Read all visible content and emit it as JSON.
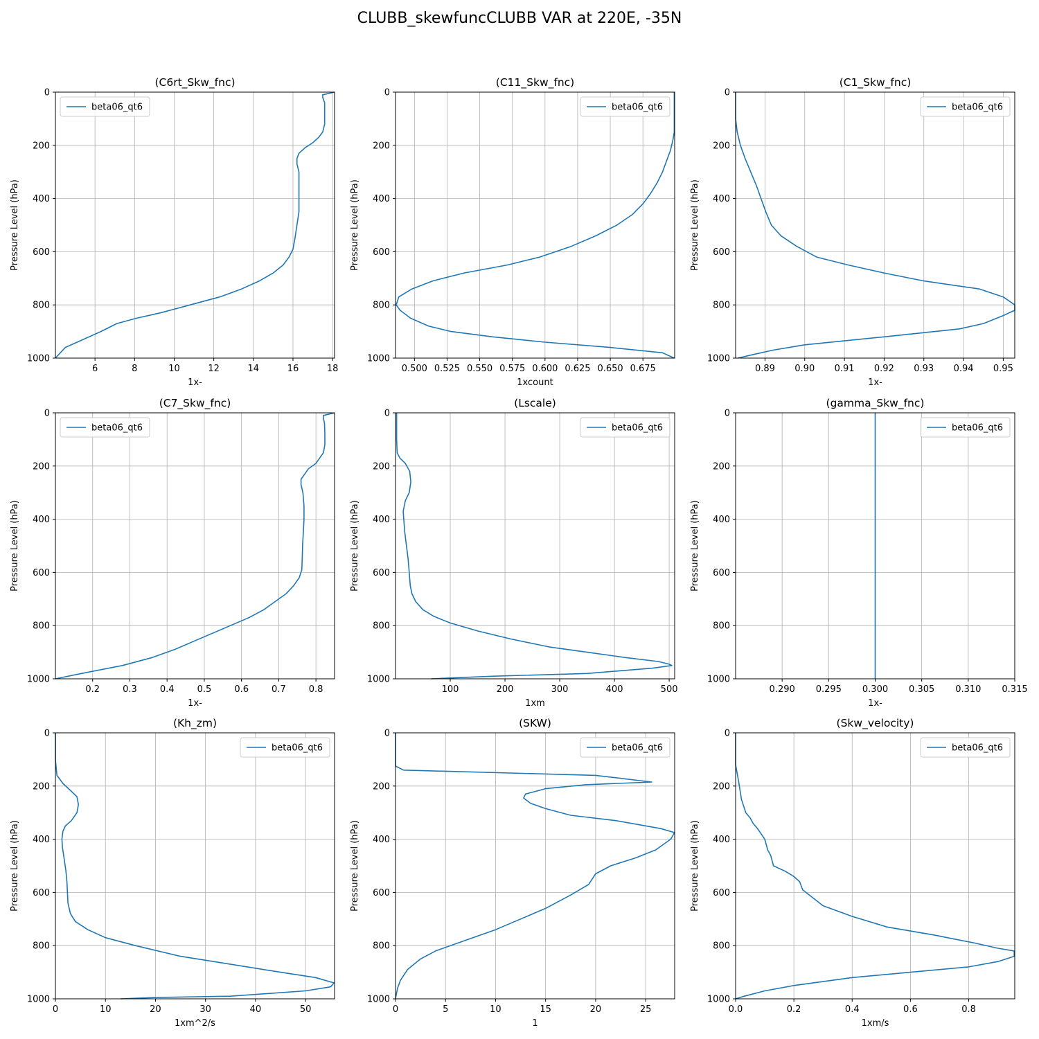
{
  "figure": {
    "title": "CLUBB_skewfuncCLUBB VAR at 220E, -35N"
  },
  "colors": {
    "line": "#1f77b4",
    "grid": "#b0b0b0",
    "axis": "#000000"
  },
  "chart_data": [
    {
      "type": "line",
      "title": "(C6rt_Skw_fnc)",
      "xlabel": "1x-",
      "ylabel": "Pressure Level (hPa)",
      "legend": "top-left",
      "series_name": "beta06_qt6",
      "xlim": [
        4.0,
        18.1
      ],
      "xticks": [
        6,
        8,
        10,
        12,
        14,
        16,
        18
      ],
      "xtick_labels": [
        "6",
        "8",
        "10",
        "12",
        "14",
        "16",
        "18"
      ],
      "ylim": [
        0,
        1000
      ],
      "yticks": [
        0,
        200,
        400,
        600,
        800,
        1000
      ],
      "ytick_labels": [
        "0",
        "200",
        "400",
        "600",
        "800",
        "1000"
      ],
      "x": [
        18.1,
        17.5,
        17.5,
        17.6,
        17.6,
        17.6,
        17.5,
        17.3,
        17.0,
        16.6,
        16.3,
        16.2,
        16.2,
        16.3,
        16.3,
        16.3,
        16.3,
        16.2,
        16.1,
        16.0,
        15.8,
        15.5,
        15.0,
        14.3,
        13.4,
        12.3,
        10.8,
        9.3,
        8.1,
        7.1,
        6.3,
        5.4,
        4.5,
        4.0
      ],
      "y": [
        0,
        10,
        20,
        40,
        80,
        120,
        150,
        170,
        190,
        210,
        230,
        250,
        270,
        300,
        350,
        400,
        450,
        500,
        550,
        590,
        620,
        650,
        680,
        710,
        740,
        770,
        800,
        830,
        850,
        870,
        900,
        930,
        960,
        1000
      ]
    },
    {
      "type": "line",
      "title": "(C11_Skw_fnc)",
      "xlabel": "1xcount",
      "ylabel": "Pressure Level (hPa)",
      "legend": "top-right",
      "series_name": "beta06_qt6",
      "xlim": [
        0.4855,
        0.6993
      ],
      "xticks": [
        0.5,
        0.525,
        0.55,
        0.575,
        0.6,
        0.625,
        0.65,
        0.675
      ],
      "xtick_labels": [
        "0.500",
        "0.525",
        "0.550",
        "0.575",
        "0.600",
        "0.625",
        "0.650",
        "0.675"
      ],
      "ylim": [
        0,
        1000
      ],
      "yticks": [
        0,
        200,
        400,
        600,
        800,
        1000
      ],
      "ytick_labels": [
        "0",
        "200",
        "400",
        "600",
        "800",
        "1000"
      ],
      "x": [
        0.699,
        0.699,
        0.699,
        0.699,
        0.698,
        0.696,
        0.693,
        0.69,
        0.686,
        0.681,
        0.675,
        0.667,
        0.655,
        0.639,
        0.62,
        0.596,
        0.571,
        0.538,
        0.514,
        0.498,
        0.488,
        0.486,
        0.489,
        0.497,
        0.511,
        0.528,
        0.56,
        0.6,
        0.65,
        0.69,
        0.699
      ],
      "y": [
        0,
        50,
        100,
        150,
        180,
        220,
        260,
        300,
        340,
        380,
        420,
        460,
        500,
        540,
        580,
        620,
        650,
        680,
        710,
        740,
        770,
        800,
        820,
        850,
        880,
        900,
        920,
        940,
        960,
        980,
        1000
      ]
    },
    {
      "type": "line",
      "title": "(C1_Skw_fnc)",
      "xlabel": "1x-",
      "ylabel": "Pressure Level (hPa)",
      "legend": "top-right",
      "series_name": "beta06_qt6",
      "xlim": [
        0.8826,
        0.9529
      ],
      "xticks": [
        0.89,
        0.9,
        0.91,
        0.92,
        0.93,
        0.94,
        0.95
      ],
      "xtick_labels": [
        "0.89",
        "0.90",
        "0.91",
        "0.92",
        "0.93",
        "0.94",
        "0.95"
      ],
      "ylim": [
        0,
        1000
      ],
      "yticks": [
        0,
        200,
        400,
        600,
        800,
        1000
      ],
      "ytick_labels": [
        "0",
        "200",
        "400",
        "600",
        "800",
        "1000"
      ],
      "x": [
        0.8826,
        0.8826,
        0.883,
        0.8838,
        0.885,
        0.8864,
        0.8878,
        0.889,
        0.8902,
        0.8916,
        0.894,
        0.898,
        0.903,
        0.911,
        0.92,
        0.93,
        0.944,
        0.95,
        0.9529,
        0.9529,
        0.95,
        0.945,
        0.939,
        0.92,
        0.9,
        0.892,
        0.886,
        0.8832
      ],
      "y": [
        0,
        100,
        150,
        200,
        250,
        300,
        350,
        400,
        450,
        500,
        540,
        580,
        620,
        650,
        680,
        710,
        740,
        770,
        800,
        820,
        840,
        870,
        890,
        920,
        950,
        970,
        990,
        1000
      ]
    },
    {
      "type": "line",
      "title": "(C7_Skw_fnc)",
      "xlabel": "1x-",
      "ylabel": "Pressure Level (hPa)",
      "legend": "top-left",
      "series_name": "beta06_qt6",
      "xlim": [
        0.1,
        0.85
      ],
      "xticks": [
        0.2,
        0.3,
        0.4,
        0.5,
        0.6,
        0.7,
        0.8
      ],
      "xtick_labels": [
        "0.2",
        "0.3",
        "0.4",
        "0.5",
        "0.6",
        "0.7",
        "0.8"
      ],
      "ylim": [
        0,
        1000
      ],
      "yticks": [
        0,
        200,
        400,
        600,
        800,
        1000
      ],
      "ytick_labels": [
        "0",
        "200",
        "400",
        "600",
        "800",
        "1000"
      ],
      "x": [
        0.85,
        0.82,
        0.82,
        0.823,
        0.824,
        0.824,
        0.82,
        0.81,
        0.8,
        0.78,
        0.77,
        0.76,
        0.76,
        0.765,
        0.768,
        0.768,
        0.766,
        0.764,
        0.763,
        0.762,
        0.755,
        0.74,
        0.72,
        0.69,
        0.66,
        0.62,
        0.57,
        0.52,
        0.47,
        0.42,
        0.36,
        0.28,
        0.17,
        0.1
      ],
      "y": [
        0,
        10,
        20,
        40,
        80,
        120,
        150,
        170,
        190,
        210,
        230,
        250,
        270,
        300,
        350,
        400,
        450,
        500,
        550,
        590,
        620,
        650,
        680,
        710,
        740,
        770,
        800,
        830,
        860,
        890,
        920,
        950,
        980,
        1000
      ]
    },
    {
      "type": "line",
      "title": "(Lscale)",
      "xlabel": "1xm",
      "ylabel": "Pressure Level (hPa)",
      "legend": "top-right",
      "series_name": "beta06_qt6",
      "xlim": [
        0,
        510
      ],
      "xticks": [
        100,
        200,
        300,
        400,
        500
      ],
      "xtick_labels": [
        "100",
        "200",
        "300",
        "400",
        "500"
      ],
      "ylim": [
        0,
        1000
      ],
      "yticks": [
        0,
        200,
        400,
        600,
        800,
        1000
      ],
      "ytick_labels": [
        "0",
        "200",
        "400",
        "600",
        "800",
        "1000"
      ],
      "x": [
        2,
        2,
        2,
        3,
        8,
        18,
        26,
        28,
        25,
        18,
        14,
        15,
        17,
        20,
        23,
        25,
        27,
        30,
        37,
        50,
        70,
        100,
        150,
        210,
        280,
        350,
        420,
        480,
        500,
        505,
        470,
        350,
        180,
        65
      ],
      "y": [
        0,
        50,
        100,
        150,
        170,
        190,
        220,
        260,
        300,
        330,
        370,
        400,
        450,
        500,
        550,
        600,
        650,
        680,
        710,
        740,
        765,
        790,
        820,
        850,
        880,
        900,
        920,
        935,
        945,
        950,
        960,
        980,
        990,
        1000
      ]
    },
    {
      "type": "line",
      "title": "(gamma_Skw_fnc)",
      "xlabel": "1x-",
      "ylabel": "Pressure Level (hPa)",
      "legend": "top-right",
      "series_name": "beta06_qt6",
      "xlim": [
        0.285,
        0.315
      ],
      "xticks": [
        0.29,
        0.295,
        0.3,
        0.305,
        0.31,
        0.315
      ],
      "xtick_labels": [
        "0.290",
        "0.295",
        "0.300",
        "0.305",
        "0.310",
        "0.315"
      ],
      "ylim": [
        0,
        1000
      ],
      "yticks": [
        0,
        200,
        400,
        600,
        800,
        1000
      ],
      "ytick_labels": [
        "0",
        "200",
        "400",
        "600",
        "800",
        "1000"
      ],
      "x": [
        0.3,
        0.3
      ],
      "y": [
        0,
        1000
      ]
    },
    {
      "type": "line",
      "title": "(Kh_zm)",
      "xlabel": "1xm^2/s",
      "ylabel": "Pressure Level (hPa)",
      "legend": "top-right",
      "series_name": "beta06_qt6",
      "xlim": [
        0,
        55.8
      ],
      "xticks": [
        0,
        10,
        20,
        30,
        40,
        50
      ],
      "xtick_labels": [
        "0",
        "10",
        "20",
        "30",
        "40",
        "50"
      ],
      "ylim": [
        0,
        1000
      ],
      "yticks": [
        0,
        200,
        400,
        600,
        800,
        1000
      ],
      "ytick_labels": [
        "0",
        "200",
        "400",
        "600",
        "800",
        "1000"
      ],
      "x": [
        0,
        0,
        0.3,
        1.5,
        3.2,
        4.3,
        4.6,
        4.3,
        3.2,
        2.0,
        1.5,
        1.3,
        1.4,
        1.8,
        2.1,
        2.3,
        2.5,
        3.0,
        4.0,
        6.5,
        10,
        16,
        25,
        35,
        45,
        52,
        55.7,
        55,
        50,
        35,
        20,
        13
      ],
      "y": [
        0,
        100,
        160,
        190,
        220,
        240,
        270,
        300,
        330,
        350,
        370,
        400,
        430,
        480,
        520,
        560,
        640,
        680,
        710,
        740,
        770,
        800,
        840,
        870,
        900,
        920,
        940,
        955,
        970,
        990,
        995,
        1000
      ]
    },
    {
      "type": "line",
      "title": "(SKW)",
      "xlabel": "1",
      "ylabel": "Pressure Level (hPa)",
      "legend": "top-right",
      "series_name": "beta06_qt6",
      "xlim": [
        0,
        27.9
      ],
      "xticks": [
        0,
        5,
        10,
        15,
        20,
        25
      ],
      "xtick_labels": [
        "0",
        "5",
        "10",
        "15",
        "20",
        "25"
      ],
      "ylim": [
        0,
        1000
      ],
      "yticks": [
        0,
        200,
        400,
        600,
        800,
        1000
      ],
      "ytick_labels": [
        "0",
        "200",
        "400",
        "600",
        "800",
        "1000"
      ],
      "x": [
        0,
        0,
        0.8,
        20,
        25.6,
        19,
        15,
        13,
        12.8,
        13.5,
        15,
        17.5,
        22,
        26.5,
        27.9,
        27.5,
        26,
        24,
        21.5,
        20,
        19.3,
        17.5,
        15,
        12.5,
        10,
        7,
        4,
        2.5,
        1.2,
        0.5,
        0.2,
        0
      ],
      "y": [
        0,
        125,
        140,
        160,
        185,
        195,
        210,
        230,
        245,
        265,
        285,
        310,
        330,
        360,
        375,
        400,
        440,
        470,
        500,
        530,
        570,
        610,
        660,
        700,
        740,
        780,
        820,
        850,
        890,
        930,
        960,
        1000
      ]
    },
    {
      "type": "line",
      "title": "(Skw_velocity)",
      "xlabel": "1xm/s",
      "ylabel": "Pressure Level (hPa)",
      "legend": "top-right",
      "series_name": "beta06_qt6",
      "xlim": [
        0,
        0.958
      ],
      "xticks": [
        0,
        0.2,
        0.4,
        0.6,
        0.8
      ],
      "xtick_labels": [
        "0.0",
        "0.2",
        "0.4",
        "0.6",
        "0.8"
      ],
      "ylim": [
        0,
        1000
      ],
      "yticks": [
        0,
        200,
        400,
        600,
        800,
        1000
      ],
      "ytick_labels": [
        "0",
        "200",
        "400",
        "600",
        "800",
        "1000"
      ],
      "x": [
        0,
        0,
        0.01,
        0.02,
        0.035,
        0.05,
        0.06,
        0.075,
        0.1,
        0.11,
        0.12,
        0.13,
        0.17,
        0.2,
        0.22,
        0.23,
        0.3,
        0.4,
        0.52,
        0.68,
        0.82,
        0.9,
        0.956,
        0.956,
        0.9,
        0.8,
        0.6,
        0.4,
        0.2,
        0.1,
        0.03,
        0
      ],
      "y": [
        0,
        120,
        180,
        250,
        300,
        320,
        340,
        360,
        400,
        440,
        460,
        500,
        520,
        540,
        560,
        590,
        650,
        690,
        730,
        760,
        790,
        810,
        820,
        840,
        860,
        880,
        900,
        920,
        950,
        970,
        990,
        1000
      ]
    }
  ]
}
